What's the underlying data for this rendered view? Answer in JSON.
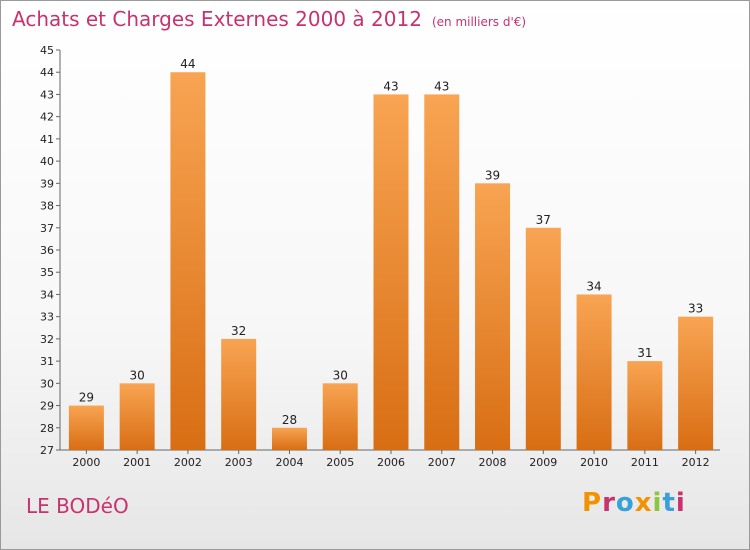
{
  "header": {
    "title": "Achats et Charges Externes 2000 à 2012",
    "unit": "(en milliers d'€)"
  },
  "footer": {
    "commune": "LE BODéO",
    "logo": "Proxiti"
  },
  "colors": {
    "title": "#c8326e",
    "bar_light": "#f8a452",
    "bar_dark": "#d86e14",
    "logo": [
      "#f39200",
      "#c8326e",
      "#3aa0d8",
      "#f39200",
      "#8cc63e",
      "#3aa0d8",
      "#c8326e"
    ]
  },
  "chart_data": {
    "type": "bar",
    "title": "Achats et Charges Externes 2000 à 2012",
    "subtitle": "(en milliers d'€)",
    "categories": [
      "2000",
      "2001",
      "2002",
      "2003",
      "2004",
      "2005",
      "2006",
      "2007",
      "2008",
      "2009",
      "2010",
      "2011",
      "2012"
    ],
    "values": [
      29,
      30,
      44,
      32,
      28,
      30,
      43,
      43,
      39,
      37,
      34,
      31,
      33
    ],
    "ylim": [
      27,
      45
    ],
    "yticks": [
      27,
      28,
      29,
      30,
      31,
      32,
      33,
      34,
      35,
      36,
      37,
      38,
      39,
      40,
      41,
      42,
      43,
      44,
      45
    ],
    "grid": false,
    "legend": "none"
  }
}
